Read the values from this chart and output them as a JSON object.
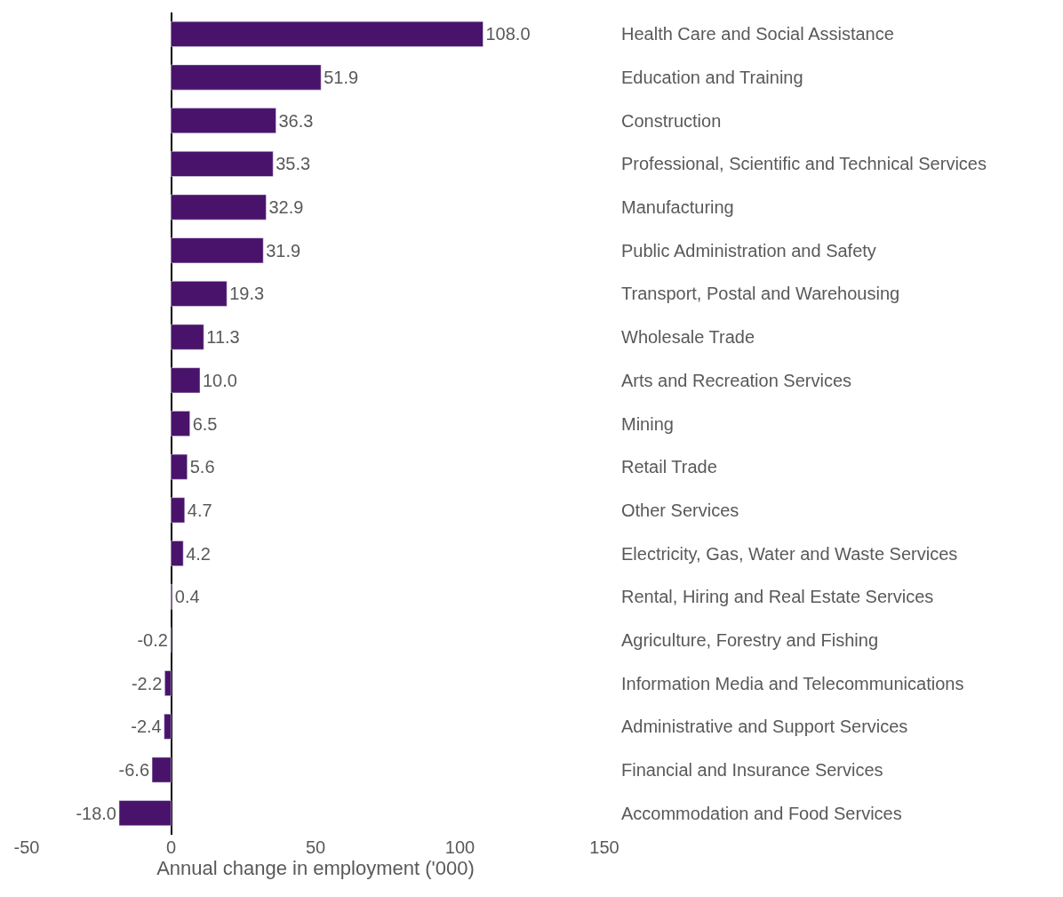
{
  "chart_data": {
    "type": "bar",
    "orientation": "horizontal",
    "xlabel": "Annual change in employment ('000)",
    "categories": [
      "Health Care and Social Assistance",
      "Education and Training",
      "Construction",
      "Professional, Scientific and Technical Services",
      "Manufacturing",
      "Public Administration and Safety",
      "Transport, Postal and Warehousing",
      "Wholesale Trade",
      "Arts and Recreation Services",
      "Mining",
      "Retail Trade",
      "Other Services",
      "Electricity, Gas, Water and Waste Services",
      "Rental, Hiring and Real Estate Services",
      "Agriculture, Forestry and Fishing",
      "Information Media and Telecommunications",
      "Administrative and Support Services",
      "Financial and Insurance Services",
      "Accommodation and Food Services"
    ],
    "values": [
      108.0,
      51.9,
      36.3,
      35.3,
      32.9,
      31.9,
      19.3,
      11.3,
      10.0,
      6.5,
      5.6,
      4.7,
      4.2,
      0.4,
      -0.2,
      -2.2,
      -2.4,
      -6.6,
      -18.0
    ],
    "value_labels": [
      "108.0",
      "51.9",
      "36.3",
      "35.3",
      "32.9",
      "31.9",
      "19.3",
      "11.3",
      "10.0",
      "6.5",
      "5.6",
      "4.7",
      "4.2",
      "0.4",
      "-0.2",
      "-2.2",
      "-2.4",
      "-6.6",
      "-18.0"
    ],
    "color": "#4a136b",
    "xlim": [
      -50,
      150
    ],
    "xticks": [
      -50,
      0,
      50,
      100,
      150
    ]
  }
}
